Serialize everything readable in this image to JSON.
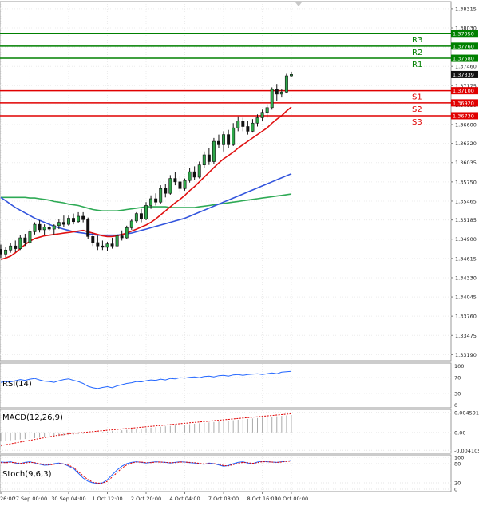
{
  "chart_data": {
    "type": "candlestick",
    "main": {
      "y_ticks": [
        "1.38315",
        "1.38030",
        "1.37745",
        "1.37460",
        "1.37175",
        "1.36890",
        "1.36600",
        "1.36320",
        "1.36035",
        "1.35750",
        "1.35465",
        "1.35185",
        "1.34900",
        "1.34615",
        "1.34330",
        "1.34045",
        "1.33760",
        "1.33475",
        "1.33190"
      ],
      "y_tick_values": [
        1.38315,
        1.3803,
        1.37745,
        1.3746,
        1.37175,
        1.3689,
        1.366,
        1.3632,
        1.36035,
        1.3575,
        1.35465,
        1.35185,
        1.349,
        1.34615,
        1.3433,
        1.34045,
        1.3376,
        1.33475,
        1.3319
      ],
      "levels": [
        {
          "name": "R3",
          "value": 1.3795,
          "label": "1.37950",
          "color": "#008000"
        },
        {
          "name": "R2",
          "value": 1.3776,
          "label": "1.37760",
          "color": "#008000"
        },
        {
          "name": "R1",
          "value": 1.3758,
          "label": "1.37580",
          "color": "#008000"
        },
        {
          "name": "S1",
          "value": 1.371,
          "label": "1.37100",
          "color": "#e00000"
        },
        {
          "name": "S2",
          "value": 1.3692,
          "label": "1.36920",
          "color": "#e00000"
        },
        {
          "name": "S3",
          "value": 1.3673,
          "label": "1.36730",
          "color": "#e00000"
        }
      ],
      "current_price": {
        "value": 1.37339,
        "label": "1.37339"
      },
      "candles": [
        [
          1.3475,
          1.3482,
          1.3462,
          1.3468
        ],
        [
          1.3468,
          1.3478,
          1.3463,
          1.3474
        ],
        [
          1.3474,
          1.3485,
          1.347,
          1.348
        ],
        [
          1.348,
          1.3488,
          1.3471,
          1.3476
        ],
        [
          1.3476,
          1.3496,
          1.3474,
          1.3492
        ],
        [
          1.3492,
          1.3498,
          1.348,
          1.3485
        ],
        [
          1.3485,
          1.3505,
          1.3482,
          1.3501
        ],
        [
          1.3501,
          1.3515,
          1.3497,
          1.3512
        ],
        [
          1.3512,
          1.3518,
          1.35,
          1.3504
        ],
        [
          1.3504,
          1.3512,
          1.3496,
          1.3508
        ],
        [
          1.3508,
          1.3515,
          1.3502,
          1.3505
        ],
        [
          1.3505,
          1.3512,
          1.3497,
          1.351
        ],
        [
          1.351,
          1.352,
          1.3505,
          1.3515
        ],
        [
          1.3515,
          1.3525,
          1.3508,
          1.3512
        ],
        [
          1.3512,
          1.3525,
          1.351,
          1.3521
        ],
        [
          1.3521,
          1.3528,
          1.3512,
          1.3516
        ],
        [
          1.3516,
          1.353,
          1.3514,
          1.3524
        ],
        [
          1.3524,
          1.353,
          1.3515,
          1.3519
        ],
        [
          1.3519,
          1.3522,
          1.349,
          1.3494
        ],
        [
          1.3494,
          1.35,
          1.348,
          1.3485
        ],
        [
          1.3485,
          1.3495,
          1.3474,
          1.348
        ],
        [
          1.348,
          1.3488,
          1.3474,
          1.3478
        ],
        [
          1.3478,
          1.3486,
          1.3473,
          1.3483
        ],
        [
          1.3483,
          1.3492,
          1.3476,
          1.348
        ],
        [
          1.348,
          1.3498,
          1.3478,
          1.3495
        ],
        [
          1.3495,
          1.3503,
          1.3488,
          1.3492
        ],
        [
          1.3492,
          1.351,
          1.349,
          1.3507
        ],
        [
          1.3507,
          1.352,
          1.3504,
          1.3517
        ],
        [
          1.3517,
          1.353,
          1.3514,
          1.3528
        ],
        [
          1.3528,
          1.3535,
          1.3515,
          1.352
        ],
        [
          1.352,
          1.3545,
          1.3518,
          1.354
        ],
        [
          1.354,
          1.3555,
          1.3535,
          1.355
        ],
        [
          1.355,
          1.3558,
          1.354,
          1.3545
        ],
        [
          1.3545,
          1.357,
          1.3542,
          1.3565
        ],
        [
          1.3565,
          1.3572,
          1.3552,
          1.3558
        ],
        [
          1.3558,
          1.3585,
          1.3556,
          1.358
        ],
        [
          1.358,
          1.359,
          1.357,
          1.3575
        ],
        [
          1.3575,
          1.3583,
          1.356,
          1.3565
        ],
        [
          1.3565,
          1.358,
          1.3562,
          1.3577
        ],
        [
          1.3577,
          1.3595,
          1.3574,
          1.359
        ],
        [
          1.359,
          1.3598,
          1.3578,
          1.3582
        ],
        [
          1.3582,
          1.3605,
          1.358,
          1.36
        ],
        [
          1.36,
          1.362,
          1.3596,
          1.3615
        ],
        [
          1.3615,
          1.3625,
          1.36,
          1.3605
        ],
        [
          1.3605,
          1.364,
          1.3602,
          1.3635
        ],
        [
          1.3635,
          1.3645,
          1.3625,
          1.363
        ],
        [
          1.363,
          1.365,
          1.362,
          1.3645
        ],
        [
          1.3645,
          1.3652,
          1.3625,
          1.363
        ],
        [
          1.363,
          1.3662,
          1.3628,
          1.3655
        ],
        [
          1.3655,
          1.3672,
          1.365,
          1.3665
        ],
        [
          1.3665,
          1.367,
          1.365,
          1.3657
        ],
        [
          1.3657,
          1.3665,
          1.3645,
          1.365
        ],
        [
          1.365,
          1.3668,
          1.3648,
          1.3662
        ],
        [
          1.3662,
          1.3675,
          1.3657,
          1.367
        ],
        [
          1.367,
          1.3682,
          1.3665,
          1.3678
        ],
        [
          1.3678,
          1.369,
          1.367,
          1.3685
        ],
        [
          1.3685,
          1.3715,
          1.3682,
          1.3712
        ],
        [
          1.3712,
          1.372,
          1.3695,
          1.3705
        ],
        [
          1.3705,
          1.3712,
          1.37,
          1.3708
        ],
        [
          1.3708,
          1.3735,
          1.3706,
          1.3732
        ],
        [
          1.3732,
          1.3738,
          1.373,
          1.3734
        ]
      ],
      "ma_red": [
        1.346,
        1.3462,
        1.3465,
        1.347,
        1.3476,
        1.3482,
        1.3487,
        1.3491,
        1.3493,
        1.3495,
        1.3496,
        1.3497,
        1.3498,
        1.3499,
        1.35,
        1.3501,
        1.3502,
        1.3503,
        1.3501,
        1.3499,
        1.3497,
        1.3495,
        1.3494,
        1.3494,
        1.3495,
        1.3497,
        1.3499,
        1.3502,
        1.3505,
        1.3508,
        1.3511,
        1.3515,
        1.352,
        1.3526,
        1.3532,
        1.3538,
        1.3544,
        1.3549,
        1.3555,
        1.3562,
        1.3568,
        1.3575,
        1.3582,
        1.3589,
        1.3596,
        1.3603,
        1.3609,
        1.3614,
        1.3619,
        1.3625,
        1.363,
        1.3635,
        1.364,
        1.3645,
        1.365,
        1.3655,
        1.3662,
        1.3668,
        1.3673,
        1.368,
        1.3686
      ],
      "ma_blue": [
        1.3552,
        1.3547,
        1.3542,
        1.3537,
        1.3533,
        1.3529,
        1.3525,
        1.3521,
        1.3518,
        1.3515,
        1.3512,
        1.3509,
        1.3507,
        1.3505,
        1.3503,
        1.3501,
        1.35,
        1.3499,
        1.3498,
        1.3497,
        1.3496,
        1.3496,
        1.3496,
        1.3496,
        1.3496,
        1.3497,
        1.3498,
        1.3499,
        1.3501,
        1.3503,
        1.3505,
        1.3507,
        1.3509,
        1.3511,
        1.3513,
        1.3515,
        1.3517,
        1.3519,
        1.3521,
        1.3524,
        1.3527,
        1.353,
        1.3533,
        1.3536,
        1.3539,
        1.3542,
        1.3545,
        1.3548,
        1.3551,
        1.3554,
        1.3557,
        1.356,
        1.3563,
        1.3566,
        1.3569,
        1.3572,
        1.3575,
        1.3578,
        1.3581,
        1.3584,
        1.3587
      ],
      "ma_green": [
        1.3552,
        1.3552,
        1.3552,
        1.3552,
        1.3552,
        1.3552,
        1.3551,
        1.3551,
        1.355,
        1.3549,
        1.3548,
        1.3546,
        1.3545,
        1.3544,
        1.3542,
        1.3541,
        1.354,
        1.3538,
        1.3536,
        1.3534,
        1.3533,
        1.3532,
        1.3532,
        1.3532,
        1.3532,
        1.3533,
        1.3534,
        1.3535,
        1.3536,
        1.3537,
        1.3538,
        1.3538,
        1.3538,
        1.3538,
        1.3538,
        1.3537,
        1.3537,
        1.3537,
        1.3537,
        1.3537,
        1.3537,
        1.3538,
        1.3539,
        1.354,
        1.3541,
        1.3542,
        1.3543,
        1.3544,
        1.3545,
        1.3546,
        1.3547,
        1.3548,
        1.3549,
        1.355,
        1.3551,
        1.3552,
        1.3553,
        1.3554,
        1.3555,
        1.3556,
        1.3557
      ]
    },
    "rsi": {
      "label": "RSI(14)",
      "y_ticks": [
        "100",
        "70",
        "30",
        "0"
      ],
      "y_tick_values": [
        100,
        70,
        30,
        0
      ],
      "values": [
        58,
        60,
        59,
        62,
        65,
        63,
        66,
        68,
        64,
        61,
        60,
        58,
        62,
        65,
        67,
        63,
        60,
        55,
        48,
        44,
        42,
        45,
        47,
        44,
        49,
        52,
        55,
        57,
        60,
        59,
        62,
        64,
        63,
        66,
        64,
        68,
        67,
        70,
        69,
        71,
        72,
        70,
        73,
        74,
        72,
        75,
        76,
        74,
        77,
        78,
        76,
        78,
        79,
        80,
        78,
        80,
        82,
        80,
        84,
        85,
        86
      ],
      "color": "#2266ff"
    },
    "macd": {
      "label": "MACD(12,26,9)",
      "y_ticks": [
        "0.004591",
        "0.00",
        "-0.004105"
      ],
      "y_tick_values": [
        0.004591,
        0,
        -0.004105
      ],
      "histogram": [
        -0.002,
        -0.0019,
        -0.0018,
        -0.0017,
        -0.0016,
        -0.0015,
        -0.0014,
        -0.0013,
        -0.0012,
        -0.0011,
        -0.001,
        -0.0009,
        -0.0008,
        -0.0007,
        -0.0006,
        -0.0005,
        -0.0004,
        -0.0003,
        -0.0002,
        -0.0001,
        0.0,
        0.0001,
        0.0002,
        0.0003,
        0.0004,
        0.0005,
        0.0006,
        0.0007,
        0.0008,
        0.0009,
        0.001,
        0.0011,
        0.0012,
        0.0013,
        0.0014,
        0.0015,
        0.0016,
        0.0017,
        0.0018,
        0.0019,
        0.002,
        0.0021,
        0.0022,
        0.0023,
        0.0024,
        0.0025,
        0.0026,
        0.0027,
        0.0028,
        0.0029,
        0.003,
        0.0031,
        0.0032,
        0.0033,
        0.0034,
        0.0035,
        0.0036,
        0.0037,
        0.0038,
        0.0039,
        0.004
      ],
      "signal": [
        -0.003,
        -0.0028,
        -0.0026,
        -0.0024,
        -0.0022,
        -0.002,
        -0.0018,
        -0.0016,
        -0.0014,
        -0.0012,
        -0.001,
        -0.0008,
        -0.0006,
        -0.0005,
        -0.0003,
        -0.0002,
        -0.0001,
        0.0,
        0.0001,
        0.0002,
        0.0003,
        0.0004,
        0.0005,
        0.0006,
        0.0007,
        0.0008,
        0.0009,
        0.001,
        0.0011,
        0.0012,
        0.0013,
        0.0014,
        0.0015,
        0.0016,
        0.0017,
        0.0018,
        0.0019,
        0.002,
        0.0021,
        0.0022,
        0.0023,
        0.0024,
        0.0025,
        0.0026,
        0.0027,
        0.0028,
        0.0029,
        0.003,
        0.0031,
        0.0032,
        0.0033,
        0.0034,
        0.0035,
        0.0036,
        0.0037,
        0.0038,
        0.0039,
        0.004,
        0.0041,
        0.0042,
        0.0043
      ]
    },
    "stoch": {
      "label": "Stoch(9,6,3)",
      "y_ticks": [
        "100",
        "80",
        "20",
        "0"
      ],
      "y_tick_values": [
        100,
        80,
        20,
        0
      ],
      "k": [
        85,
        84,
        86,
        82,
        80,
        84,
        86,
        82,
        78,
        75,
        76,
        80,
        82,
        79,
        72,
        65,
        50,
        35,
        25,
        20,
        18,
        20,
        30,
        45,
        60,
        72,
        80,
        84,
        86,
        84,
        82,
        84,
        86,
        85,
        84,
        82,
        84,
        86,
        85,
        83,
        82,
        80,
        78,
        82,
        80,
        76,
        72,
        74,
        80,
        84,
        86,
        82,
        80,
        85,
        88,
        86,
        85,
        84,
        86,
        88,
        90
      ],
      "d": [
        83,
        83,
        84,
        83,
        81,
        82,
        84,
        83,
        80,
        77,
        76,
        78,
        80,
        79,
        75,
        68,
        55,
        42,
        30,
        22,
        19,
        19,
        25,
        38,
        52,
        66,
        76,
        82,
        85,
        85,
        83,
        83,
        85,
        85,
        84,
        83,
        83,
        85,
        85,
        84,
        83,
        81,
        79,
        80,
        80,
        78,
        74,
        73,
        77,
        81,
        84,
        83,
        81,
        83,
        86,
        86,
        85,
        84,
        85,
        87,
        88
      ],
      "k_color": "#2266ff",
      "d_color": "#e00000"
    },
    "x_ticks": [
      "26:00",
      "27 Sep 00:00",
      "30 Sep 04:00",
      "1 Oct 12:00",
      "2 Oct 20:00",
      "4 Oct 04:00",
      "7 Oct 08:00",
      "8 Oct 16:00",
      "10 Oct 00:00"
    ],
    "x_tick_positions": [
      0,
      6,
      14,
      22,
      30,
      38,
      46,
      54,
      60
    ]
  }
}
